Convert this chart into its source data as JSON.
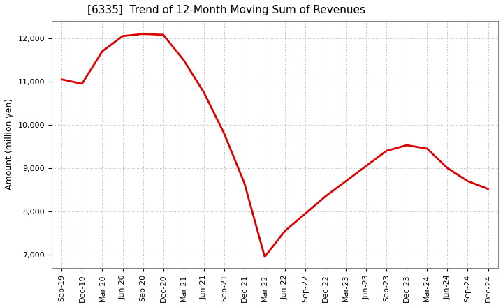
{
  "title": "[6335]  Trend of 12-Month Moving Sum of Revenues",
  "ylabel": "Amount (million yen)",
  "line_color": "#dd0000",
  "background_color": "#ffffff",
  "grid_color": "#aaaaaa",
  "ylim": [
    6700,
    12400
  ],
  "yticks": [
    7000,
    8000,
    9000,
    10000,
    11000,
    12000
  ],
  "x_labels": [
    "Sep-19",
    "Dec-19",
    "Mar-20",
    "Jun-20",
    "Sep-20",
    "Dec-20",
    "Mar-21",
    "Jun-21",
    "Sep-21",
    "Dec-21",
    "Mar-22",
    "Jun-22",
    "Sep-22",
    "Dec-22",
    "Mar-23",
    "Jun-23",
    "Sep-23",
    "Dec-23",
    "Mar-24",
    "Jun-24",
    "Sep-24",
    "Dec-24"
  ],
  "values": [
    11050,
    10950,
    11700,
    12050,
    12100,
    12080,
    11500,
    10750,
    9800,
    8650,
    6950,
    7550,
    7950,
    8350,
    8700,
    9050,
    9400,
    9530,
    9450,
    9000,
    8700,
    8520
  ],
  "title_fontsize": 11,
  "ylabel_fontsize": 9,
  "tick_fontsize": 8,
  "linewidth": 2.0
}
